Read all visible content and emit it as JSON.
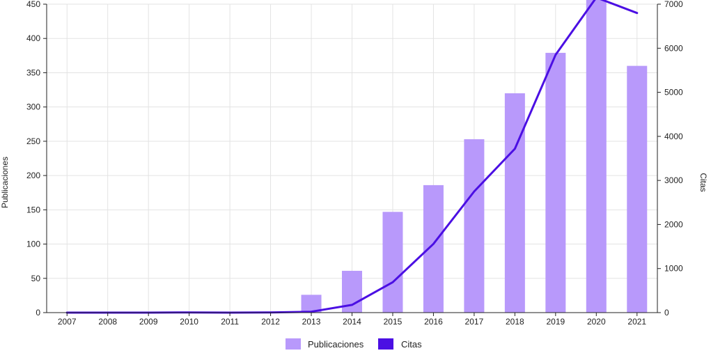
{
  "chart_data": {
    "type": "bar",
    "categories": [
      "2007",
      "2008",
      "2009",
      "2010",
      "2011",
      "2012",
      "2013",
      "2014",
      "2015",
      "2016",
      "2017",
      "2018",
      "2019",
      "2020",
      "2021"
    ],
    "series": [
      {
        "name": "Publicaciones",
        "type": "bar",
        "axis": "left",
        "color": "#b899fb",
        "values": [
          0,
          0,
          0,
          0,
          0,
          0,
          26,
          61,
          147,
          186,
          253,
          320,
          379,
          460,
          360
        ]
      },
      {
        "name": "Citas",
        "type": "line",
        "axis": "right",
        "color": "#4b0fe3",
        "values": [
          0,
          0,
          0,
          5,
          0,
          5,
          20,
          175,
          690,
          1560,
          2750,
          3720,
          5850,
          7150,
          6800
        ]
      }
    ],
    "ylabel": "Publicaciones",
    "y2label": "Citas",
    "ylim": [
      0,
      450
    ],
    "y2lim": [
      0,
      7000
    ],
    "yticks": [
      "0",
      "50",
      "100",
      "150",
      "200",
      "250",
      "300",
      "350",
      "400",
      "450"
    ],
    "y2ticks": [
      "0",
      "1000",
      "2000",
      "3000",
      "4000",
      "5000",
      "6000",
      "7000"
    ],
    "grid": true,
    "legend_position": "bottom"
  }
}
